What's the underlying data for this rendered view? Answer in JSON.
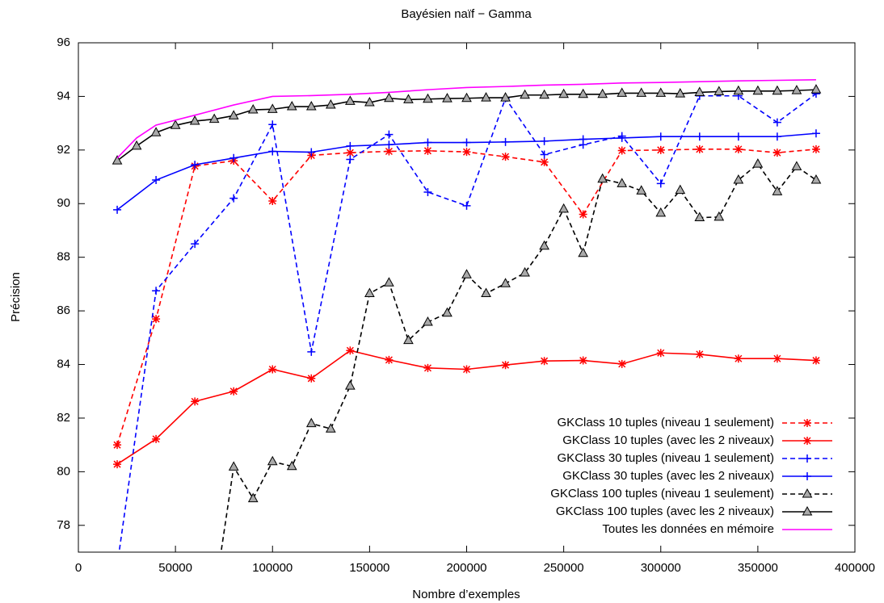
{
  "chart_data": {
    "type": "line",
    "title": "Bayésien naïf − Gamma",
    "xlabel": "Nombre d’exemples",
    "ylabel": "Précision",
    "xlim": [
      0,
      400000
    ],
    "xticks": [
      0,
      50000,
      100000,
      150000,
      200000,
      250000,
      300000,
      350000,
      400000
    ],
    "ylim": [
      77,
      96
    ],
    "yticks": [
      78,
      80,
      82,
      84,
      86,
      88,
      90,
      92,
      94,
      96
    ],
    "grid": false,
    "legend": "lower right",
    "series": [
      {
        "name": "GKClass 10 tuples (niveau 1 seulement)",
        "color": "#ff0000",
        "dashed": true,
        "marker": "star",
        "x": [
          20000,
          40000,
          60000,
          80000,
          100000,
          120000,
          140000,
          160000,
          180000,
          200000,
          220000,
          240000,
          260000,
          280000,
          300000,
          320000,
          340000,
          360000,
          380000
        ],
        "values": [
          81.0,
          85.7,
          91.4,
          91.6,
          90.1,
          91.8,
          91.9,
          91.95,
          91.97,
          91.93,
          91.75,
          91.55,
          89.6,
          91.98,
          92.0,
          92.03,
          92.03,
          91.9,
          92.03
        ]
      },
      {
        "name": "GKClass 10 tuples (avec les 2 niveaux)",
        "color": "#ff0000",
        "dashed": false,
        "marker": "star",
        "x": [
          20000,
          40000,
          60000,
          80000,
          100000,
          120000,
          140000,
          160000,
          180000,
          200000,
          220000,
          240000,
          260000,
          280000,
          300000,
          320000,
          340000,
          360000,
          380000
        ],
        "values": [
          80.28,
          81.22,
          82.62,
          83.0,
          83.82,
          83.48,
          84.52,
          84.17,
          83.87,
          83.82,
          83.98,
          84.13,
          84.15,
          84.02,
          84.43,
          84.38,
          84.22,
          84.22,
          84.15
        ]
      },
      {
        "name": "GKClass 30 tuples (niveau 1 seulement)",
        "color": "#0000ff",
        "dashed": true,
        "marker": "plus",
        "x": [
          20000,
          40000,
          60000,
          80000,
          100000,
          120000,
          140000,
          160000,
          180000,
          200000,
          220000,
          240000,
          260000,
          280000,
          300000,
          320000,
          340000,
          360000,
          380000
        ],
        "values": [
          76.5,
          86.75,
          88.5,
          90.2,
          92.95,
          84.47,
          91.65,
          92.58,
          90.43,
          89.92,
          93.93,
          91.83,
          92.2,
          92.52,
          90.75,
          94.02,
          94.02,
          93.03,
          94.1
        ]
      },
      {
        "name": "GKClass 30 tuples (avec les 2 niveaux)",
        "color": "#0000ff",
        "dashed": false,
        "marker": "plus",
        "x": [
          20000,
          40000,
          60000,
          80000,
          100000,
          120000,
          140000,
          160000,
          180000,
          200000,
          220000,
          240000,
          260000,
          280000,
          300000,
          320000,
          340000,
          360000,
          380000
        ],
        "values": [
          89.77,
          90.88,
          91.45,
          91.7,
          91.95,
          91.92,
          92.15,
          92.2,
          92.28,
          92.28,
          92.3,
          92.33,
          92.4,
          92.45,
          92.5,
          92.5,
          92.5,
          92.5,
          92.62
        ]
      },
      {
        "name": "GKClass 100 tuples (niveau 1 seulement)",
        "color": "#000000",
        "dashed": true,
        "marker": "triangle",
        "x": [
          70000,
          80000,
          90000,
          100000,
          110000,
          120000,
          130000,
          140000,
          150000,
          160000,
          170000,
          180000,
          190000,
          200000,
          210000,
          220000,
          230000,
          240000,
          250000,
          260000,
          270000,
          280000,
          290000,
          300000,
          310000,
          320000,
          330000,
          340000,
          350000,
          360000,
          370000,
          380000
        ],
        "values": [
          75.3,
          80.18,
          79.0,
          80.38,
          80.2,
          81.8,
          81.6,
          83.2,
          86.65,
          87.05,
          84.9,
          85.58,
          85.92,
          87.35,
          86.65,
          87.02,
          87.42,
          88.42,
          89.8,
          88.15,
          90.92,
          90.75,
          90.48,
          89.65,
          90.5,
          89.48,
          89.5,
          90.88,
          91.48,
          90.45,
          91.38,
          90.88
        ]
      },
      {
        "name": "GKClass 100 tuples (avec les 2 niveaux)",
        "color": "#000000",
        "dashed": false,
        "marker": "triangle",
        "x": [
          20000,
          30000,
          40000,
          50000,
          60000,
          70000,
          80000,
          90000,
          100000,
          110000,
          120000,
          130000,
          140000,
          150000,
          160000,
          170000,
          180000,
          190000,
          200000,
          210000,
          220000,
          230000,
          240000,
          250000,
          260000,
          270000,
          280000,
          290000,
          300000,
          310000,
          320000,
          330000,
          340000,
          350000,
          360000,
          370000,
          380000
        ],
        "values": [
          91.6,
          92.15,
          92.65,
          92.92,
          93.08,
          93.15,
          93.28,
          93.5,
          93.52,
          93.62,
          93.62,
          93.68,
          93.82,
          93.77,
          93.93,
          93.88,
          93.9,
          93.92,
          93.93,
          93.95,
          93.95,
          94.05,
          94.05,
          94.08,
          94.08,
          94.08,
          94.12,
          94.12,
          94.12,
          94.1,
          94.15,
          94.18,
          94.2,
          94.2,
          94.2,
          94.22,
          94.25
        ]
      },
      {
        "name": "Toutes les données en mémoire",
        "color": "#ff00ff",
        "dashed": false,
        "marker": "none",
        "x": [
          20000,
          30000,
          40000,
          60000,
          80000,
          100000,
          120000,
          140000,
          160000,
          180000,
          200000,
          220000,
          240000,
          260000,
          280000,
          300000,
          320000,
          340000,
          360000,
          380000
        ],
        "values": [
          91.7,
          92.45,
          92.93,
          93.3,
          93.68,
          94.0,
          94.03,
          94.08,
          94.15,
          94.25,
          94.33,
          94.37,
          94.42,
          94.45,
          94.5,
          94.52,
          94.55,
          94.58,
          94.6,
          94.62
        ]
      }
    ]
  }
}
